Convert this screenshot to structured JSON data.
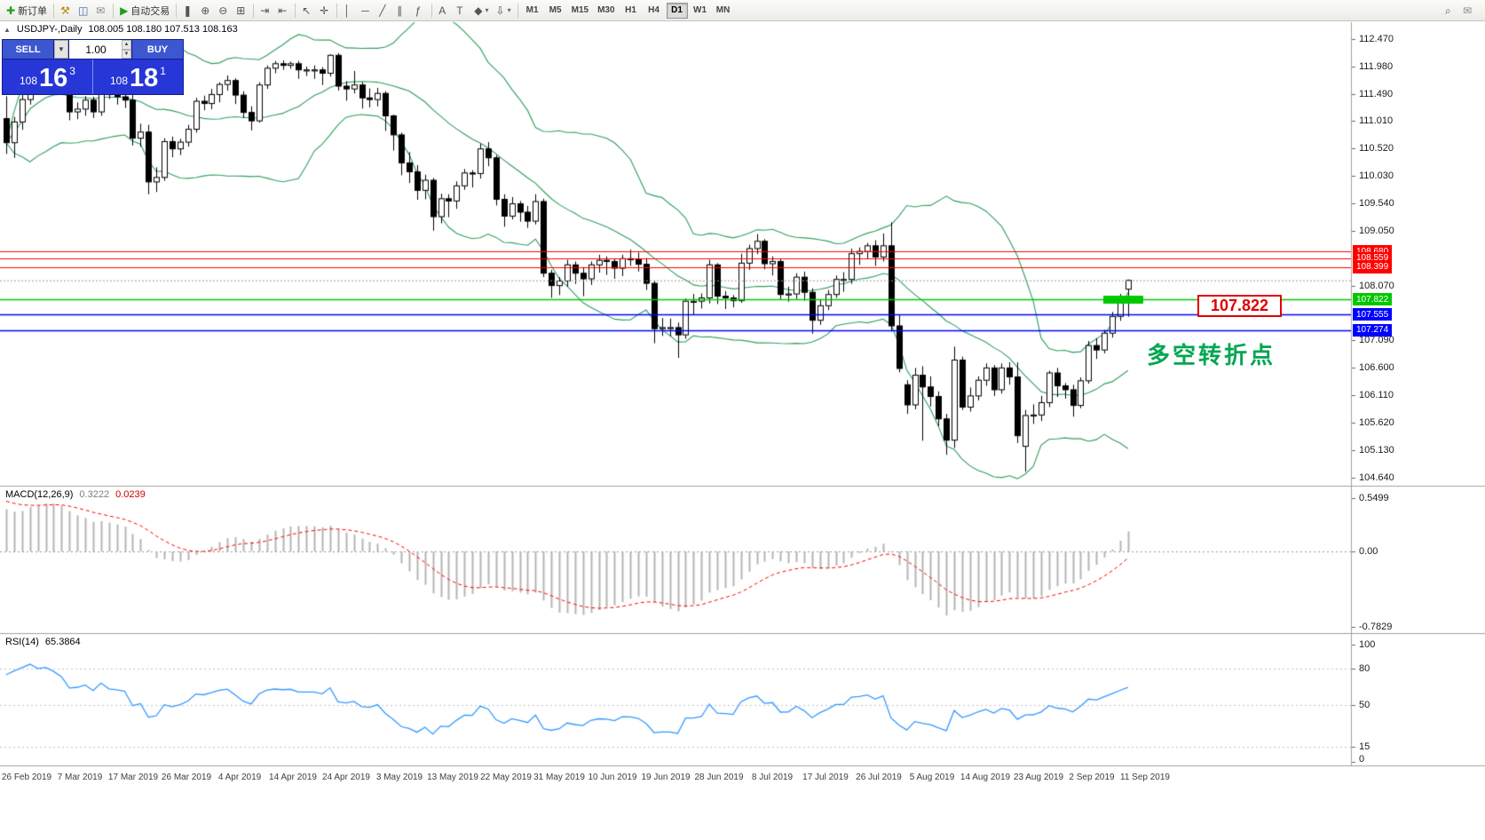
{
  "toolbar": {
    "left_groups": [
      [
        {
          "name": "new-order-button",
          "icon": "new_order",
          "label": "新订单"
        }
      ],
      [
        {
          "name": "indicators-button",
          "icon": "hammer"
        },
        {
          "name": "depth-of-market-button",
          "icon": "depth"
        },
        {
          "name": "alerts-button",
          "icon": "chat"
        }
      ],
      [
        {
          "name": "autotrading-button",
          "icon": "play",
          "label": "自动交易"
        }
      ],
      [
        {
          "name": "candle-chart-button",
          "icon": "candles"
        },
        {
          "name": "zoom-in-button",
          "icon": "zoom_in"
        },
        {
          "name": "zoom-out-button",
          "icon": "zoom_out"
        },
        {
          "name": "tile-windows-button",
          "icon": "tile"
        }
      ],
      [
        {
          "name": "auto-scroll-button",
          "icon": "auto_scroll"
        },
        {
          "name": "chart-shift-button",
          "icon": "chart_shift"
        }
      ],
      [
        {
          "name": "cursor-button",
          "icon": "cursor"
        },
        {
          "name": "crosshair-button",
          "icon": "crosshair"
        }
      ],
      [
        {
          "name": "vertical-line-button",
          "icon": "vline"
        },
        {
          "name": "horizontal-line-button",
          "icon": "hline"
        },
        {
          "name": "trendline-button",
          "icon": "trendline"
        },
        {
          "name": "equidistant-channel-button",
          "icon": "channel"
        },
        {
          "name": "fibonacci-button",
          "icon": "fibo"
        }
      ],
      [
        {
          "name": "text-button",
          "icon": "text"
        },
        {
          "name": "text-label-button",
          "icon": "label"
        },
        {
          "name": "shapes-button",
          "icon": "shapes",
          "dropdown": true
        },
        {
          "name": "arrows-button",
          "icon": "arrows",
          "dropdown": true
        }
      ]
    ],
    "timeframes": [
      "M1",
      "M5",
      "M15",
      "M30",
      "H1",
      "H4",
      "D1",
      "W1",
      "MN"
    ],
    "active_timeframe": "D1",
    "right_items": [
      {
        "name": "search-button",
        "icon": "search"
      },
      {
        "name": "feedback-button",
        "icon": "chat"
      }
    ]
  },
  "chart": {
    "title_symbol": "USDJPY-,Daily",
    "title_ohlc": "108.005 108.180 107.513 108.163",
    "trade_panel": {
      "sell_label": "SELL",
      "buy_label": "BUY",
      "volume": "1.00",
      "sell_price_small": "108",
      "sell_price_big": "16",
      "sell_price_sup": "3",
      "buy_price_small": "108",
      "buy_price_big": "18",
      "buy_price_sup": "1"
    },
    "annotation": {
      "text": "多空转折点",
      "color": "#00a651"
    },
    "price_label_box": {
      "text": "107.822"
    },
    "current_price": {
      "value": "108.163",
      "price": 108.163
    },
    "hlines": [
      {
        "price": 108.68,
        "color": "#ff0000",
        "label": "108.680"
      },
      {
        "price": 108.559,
        "color": "#ff0000",
        "label": "108.559"
      },
      {
        "price": 108.399,
        "color": "#ff0000",
        "label": "108.399"
      },
      {
        "price": 107.822,
        "color": "#00c800",
        "label": "107.822",
        "thick_segment": true
      },
      {
        "price": 107.555,
        "color": "#0000ff",
        "label": "107.555"
      },
      {
        "price": 107.274,
        "color": "#0000ff",
        "label": "107.274"
      }
    ],
    "y_ticks": [
      112.47,
      111.98,
      111.49,
      111.01,
      110.52,
      110.03,
      109.54,
      109.05,
      108.07,
      107.09,
      106.6,
      106.11,
      105.62,
      105.13,
      104.64
    ]
  },
  "chart_data": {
    "type": "candlestick",
    "symbol": "USDJPY",
    "period": "Daily",
    "ylim": [
      104.497,
      112.787
    ],
    "x_axis_labels": [
      "26 Feb 2019",
      "7 Mar 2019",
      "17 Mar 2019",
      "26 Mar 2019",
      "4 Apr 2019",
      "14 Apr 2019",
      "24 Apr 2019",
      "3 May 2019",
      "13 May 2019",
      "22 May 2019",
      "31 May 2019",
      "10 Jun 2019",
      "19 Jun 2019",
      "28 Jun 2019",
      "8 Jul 2019",
      "17 Jul 2019",
      "26 Jul 2019",
      "5 Aug 2019",
      "14 Aug 2019",
      "23 Aug 2019",
      "2 Sep 2019",
      "11 Sep 2019"
    ],
    "bollinger": {
      "period": 20,
      "deviation": 2
    },
    "colors": {
      "up": "#ffffff",
      "down": "#000000",
      "outline": "#000000",
      "bollinger": "#2e9e5e",
      "bid_line": "#9a9a9a"
    },
    "ohlc": [
      [
        111.05,
        111.45,
        110.42,
        110.62
      ],
      [
        110.62,
        111.08,
        110.35,
        110.99
      ],
      [
        110.99,
        111.5,
        110.85,
        111.39
      ],
      [
        111.39,
        112.0,
        111.3,
        111.89
      ],
      [
        111.89,
        111.95,
        111.6,
        111.75
      ],
      [
        111.75,
        111.96,
        111.65,
        111.9
      ],
      [
        111.9,
        112.0,
        111.7,
        111.77
      ],
      [
        111.77,
        111.87,
        111.52,
        111.59
      ],
      [
        111.59,
        111.65,
        111.02,
        111.17
      ],
      [
        111.17,
        111.34,
        111.04,
        111.22
      ],
      [
        111.22,
        111.45,
        111.1,
        111.38
      ],
      [
        111.38,
        111.44,
        111.06,
        111.17
      ],
      [
        111.17,
        111.78,
        111.1,
        111.72
      ],
      [
        111.72,
        111.8,
        111.4,
        111.48
      ],
      [
        111.48,
        111.6,
        111.3,
        111.44
      ],
      [
        111.44,
        111.56,
        111.24,
        111.38
      ],
      [
        111.38,
        111.48,
        110.57,
        110.7
      ],
      [
        110.7,
        110.96,
        110.55,
        110.81
      ],
      [
        110.81,
        110.94,
        109.7,
        109.92
      ],
      [
        109.92,
        110.18,
        109.74,
        110.0
      ],
      [
        110.0,
        110.7,
        109.94,
        110.64
      ],
      [
        110.64,
        110.73,
        110.36,
        110.51
      ],
      [
        110.51,
        110.69,
        110.4,
        110.63
      ],
      [
        110.63,
        110.94,
        110.55,
        110.86
      ],
      [
        110.86,
        111.42,
        110.8,
        111.36
      ],
      [
        111.36,
        111.46,
        111.2,
        111.32
      ],
      [
        111.32,
        111.58,
        111.22,
        111.48
      ],
      [
        111.48,
        111.7,
        111.34,
        111.66
      ],
      [
        111.66,
        111.82,
        111.55,
        111.73
      ],
      [
        111.73,
        111.77,
        111.31,
        111.47
      ],
      [
        111.47,
        111.54,
        111.06,
        111.16
      ],
      [
        111.16,
        111.27,
        110.84,
        111.01
      ],
      [
        111.01,
        111.7,
        110.98,
        111.65
      ],
      [
        111.65,
        112.0,
        111.58,
        111.95
      ],
      [
        111.95,
        112.08,
        111.86,
        112.03
      ],
      [
        112.03,
        112.09,
        111.92,
        112.0
      ],
      [
        112.0,
        112.07,
        111.94,
        112.03
      ],
      [
        112.03,
        112.08,
        111.76,
        111.92
      ],
      [
        111.92,
        111.98,
        111.81,
        111.92
      ],
      [
        111.92,
        112.0,
        111.76,
        111.92
      ],
      [
        111.92,
        111.97,
        111.65,
        111.86
      ],
      [
        111.86,
        112.2,
        111.8,
        112.18
      ],
      [
        112.18,
        112.22,
        111.55,
        111.63
      ],
      [
        111.63,
        111.72,
        111.37,
        111.58
      ],
      [
        111.58,
        111.9,
        111.5,
        111.65
      ],
      [
        111.65,
        111.7,
        111.23,
        111.42
      ],
      [
        111.42,
        111.59,
        111.25,
        111.39
      ],
      [
        111.39,
        111.6,
        111.27,
        111.5
      ],
      [
        111.5,
        111.54,
        110.83,
        111.1
      ],
      [
        111.1,
        111.12,
        110.48,
        110.76
      ],
      [
        110.76,
        110.8,
        110.04,
        110.26
      ],
      [
        110.26,
        110.45,
        109.9,
        110.1
      ],
      [
        110.1,
        110.22,
        109.6,
        109.77
      ],
      [
        109.77,
        110.05,
        109.61,
        109.95
      ],
      [
        109.95,
        109.99,
        109.05,
        109.3
      ],
      [
        109.3,
        109.71,
        109.18,
        109.62
      ],
      [
        109.62,
        109.7,
        109.29,
        109.58
      ],
      [
        109.58,
        109.93,
        109.44,
        109.85
      ],
      [
        109.85,
        110.15,
        109.78,
        110.08
      ],
      [
        110.08,
        110.13,
        109.82,
        110.07
      ],
      [
        110.07,
        110.6,
        109.98,
        110.51
      ],
      [
        110.51,
        110.63,
        110.2,
        110.35
      ],
      [
        110.35,
        110.4,
        109.5,
        109.61
      ],
      [
        109.61,
        109.7,
        109.12,
        109.31
      ],
      [
        109.31,
        109.65,
        109.25,
        109.53
      ],
      [
        109.53,
        109.58,
        109.21,
        109.38
      ],
      [
        109.38,
        109.49,
        109.1,
        109.22
      ],
      [
        109.22,
        109.7,
        109.16,
        109.57
      ],
      [
        109.57,
        109.62,
        108.22,
        108.29
      ],
      [
        108.29,
        108.35,
        107.85,
        108.07
      ],
      [
        108.07,
        108.22,
        107.9,
        108.15
      ],
      [
        108.15,
        108.53,
        108.05,
        108.44
      ],
      [
        108.44,
        108.5,
        108.1,
        108.29
      ],
      [
        108.29,
        108.4,
        107.88,
        108.19
      ],
      [
        108.19,
        108.5,
        108.08,
        108.44
      ],
      [
        108.44,
        108.62,
        108.3,
        108.52
      ],
      [
        108.52,
        108.59,
        108.26,
        108.5
      ],
      [
        108.5,
        108.55,
        108.19,
        108.38
      ],
      [
        108.38,
        108.62,
        108.24,
        108.55
      ],
      [
        108.55,
        108.71,
        108.42,
        108.54
      ],
      [
        108.54,
        108.66,
        108.32,
        108.45
      ],
      [
        108.45,
        108.56,
        107.99,
        108.11
      ],
      [
        108.11,
        108.16,
        107.04,
        107.3
      ],
      [
        107.3,
        107.49,
        107.17,
        107.32
      ],
      [
        107.32,
        107.48,
        107.16,
        107.32
      ],
      [
        107.32,
        107.41,
        106.78,
        107.19
      ],
      [
        107.19,
        107.84,
        107.12,
        107.79
      ],
      [
        107.79,
        107.92,
        107.55,
        107.79
      ],
      [
        107.79,
        107.93,
        107.66,
        107.85
      ],
      [
        107.85,
        108.53,
        107.75,
        108.44
      ],
      [
        108.44,
        108.47,
        107.74,
        107.88
      ],
      [
        107.88,
        107.97,
        107.65,
        107.85
      ],
      [
        107.85,
        107.9,
        107.68,
        107.8
      ],
      [
        107.8,
        108.64,
        107.76,
        108.47
      ],
      [
        108.47,
        108.8,
        108.35,
        108.73
      ],
      [
        108.73,
        108.99,
        108.63,
        108.86
      ],
      [
        108.86,
        108.9,
        108.36,
        108.46
      ],
      [
        108.46,
        108.59,
        108.25,
        108.5
      ],
      [
        108.5,
        108.55,
        107.81,
        107.91
      ],
      [
        107.91,
        108.05,
        107.78,
        107.92
      ],
      [
        107.92,
        108.29,
        107.83,
        108.22
      ],
      [
        108.22,
        108.32,
        107.8,
        107.95
      ],
      [
        107.95,
        108.02,
        107.21,
        107.45
      ],
      [
        107.45,
        107.82,
        107.37,
        107.71
      ],
      [
        107.71,
        107.99,
        107.63,
        107.91
      ],
      [
        107.91,
        108.25,
        107.85,
        108.18
      ],
      [
        108.18,
        108.31,
        107.96,
        108.18
      ],
      [
        108.18,
        108.73,
        108.1,
        108.64
      ],
      [
        108.64,
        108.75,
        108.44,
        108.68
      ],
      [
        108.68,
        108.83,
        108.55,
        108.78
      ],
      [
        108.78,
        108.88,
        108.42,
        108.58
      ],
      [
        108.58,
        109.0,
        108.5,
        108.78
      ],
      [
        108.78,
        109.2,
        107.25,
        107.35
      ],
      [
        107.35,
        107.55,
        106.52,
        106.59
      ],
      [
        106.3,
        106.38,
        105.78,
        105.94
      ],
      [
        105.94,
        106.6,
        105.86,
        106.47
      ],
      [
        106.47,
        106.63,
        105.3,
        106.26
      ],
      [
        106.26,
        106.45,
        105.91,
        106.09
      ],
      [
        106.09,
        106.18,
        105.56,
        105.69
      ],
      [
        105.69,
        105.78,
        105.05,
        105.31
      ],
      [
        105.31,
        106.98,
        105.17,
        106.74
      ],
      [
        106.74,
        106.8,
        105.85,
        105.9
      ],
      [
        105.9,
        106.25,
        105.82,
        106.1
      ],
      [
        106.1,
        106.45,
        106.02,
        106.38
      ],
      [
        106.38,
        106.68,
        106.28,
        106.6
      ],
      [
        106.6,
        106.65,
        106.1,
        106.21
      ],
      [
        106.21,
        106.68,
        106.14,
        106.6
      ],
      [
        106.6,
        106.7,
        106.3,
        106.44
      ],
      [
        106.44,
        106.7,
        105.26,
        105.39
      ],
      [
        105.2,
        105.85,
        104.75,
        105.75
      ],
      [
        105.75,
        105.95,
        105.6,
        105.76
      ],
      [
        105.76,
        106.1,
        105.65,
        105.98
      ],
      [
        105.98,
        106.55,
        105.9,
        106.51
      ],
      [
        106.51,
        106.6,
        106.08,
        106.28
      ],
      [
        106.28,
        106.33,
        106.05,
        106.21
      ],
      [
        106.21,
        106.3,
        105.73,
        105.93
      ],
      [
        105.93,
        106.43,
        105.88,
        106.37
      ],
      [
        106.37,
        107.08,
        106.32,
        107.0
      ],
      [
        107.0,
        107.13,
        106.76,
        106.92
      ],
      [
        106.92,
        107.28,
        106.86,
        107.22
      ],
      [
        107.22,
        107.6,
        107.14,
        107.52
      ],
      [
        107.52,
        107.92,
        107.44,
        107.85
      ],
      [
        108.005,
        108.18,
        107.513,
        108.163
      ]
    ]
  },
  "macd_panel": {
    "header": "MACD(12,26,9)",
    "value_main": "0.3222",
    "value_signal": "0.0239",
    "scale": [
      "0.5499",
      "0.00",
      "-0.7829"
    ],
    "scale_values": [
      0.5499,
      0,
      -0.7829
    ],
    "seed": {
      "ema12": 110.95,
      "ema26": 110.45,
      "signal": 0.54
    },
    "colors": {
      "histogram": "#b4b4b4",
      "signal": "#ff0000"
    }
  },
  "rsi_panel": {
    "header": "RSI(14)",
    "value": "65.3864",
    "period": 14,
    "scale": [
      "100",
      "80",
      "50",
      "15",
      "0"
    ],
    "scale_values": [
      100,
      80,
      50,
      15,
      0
    ],
    "levels": [
      80,
      50,
      15
    ],
    "seed": {
      "avg_gain": 0.15,
      "avg_loss": 0.05
    },
    "color": "#3399ff"
  }
}
